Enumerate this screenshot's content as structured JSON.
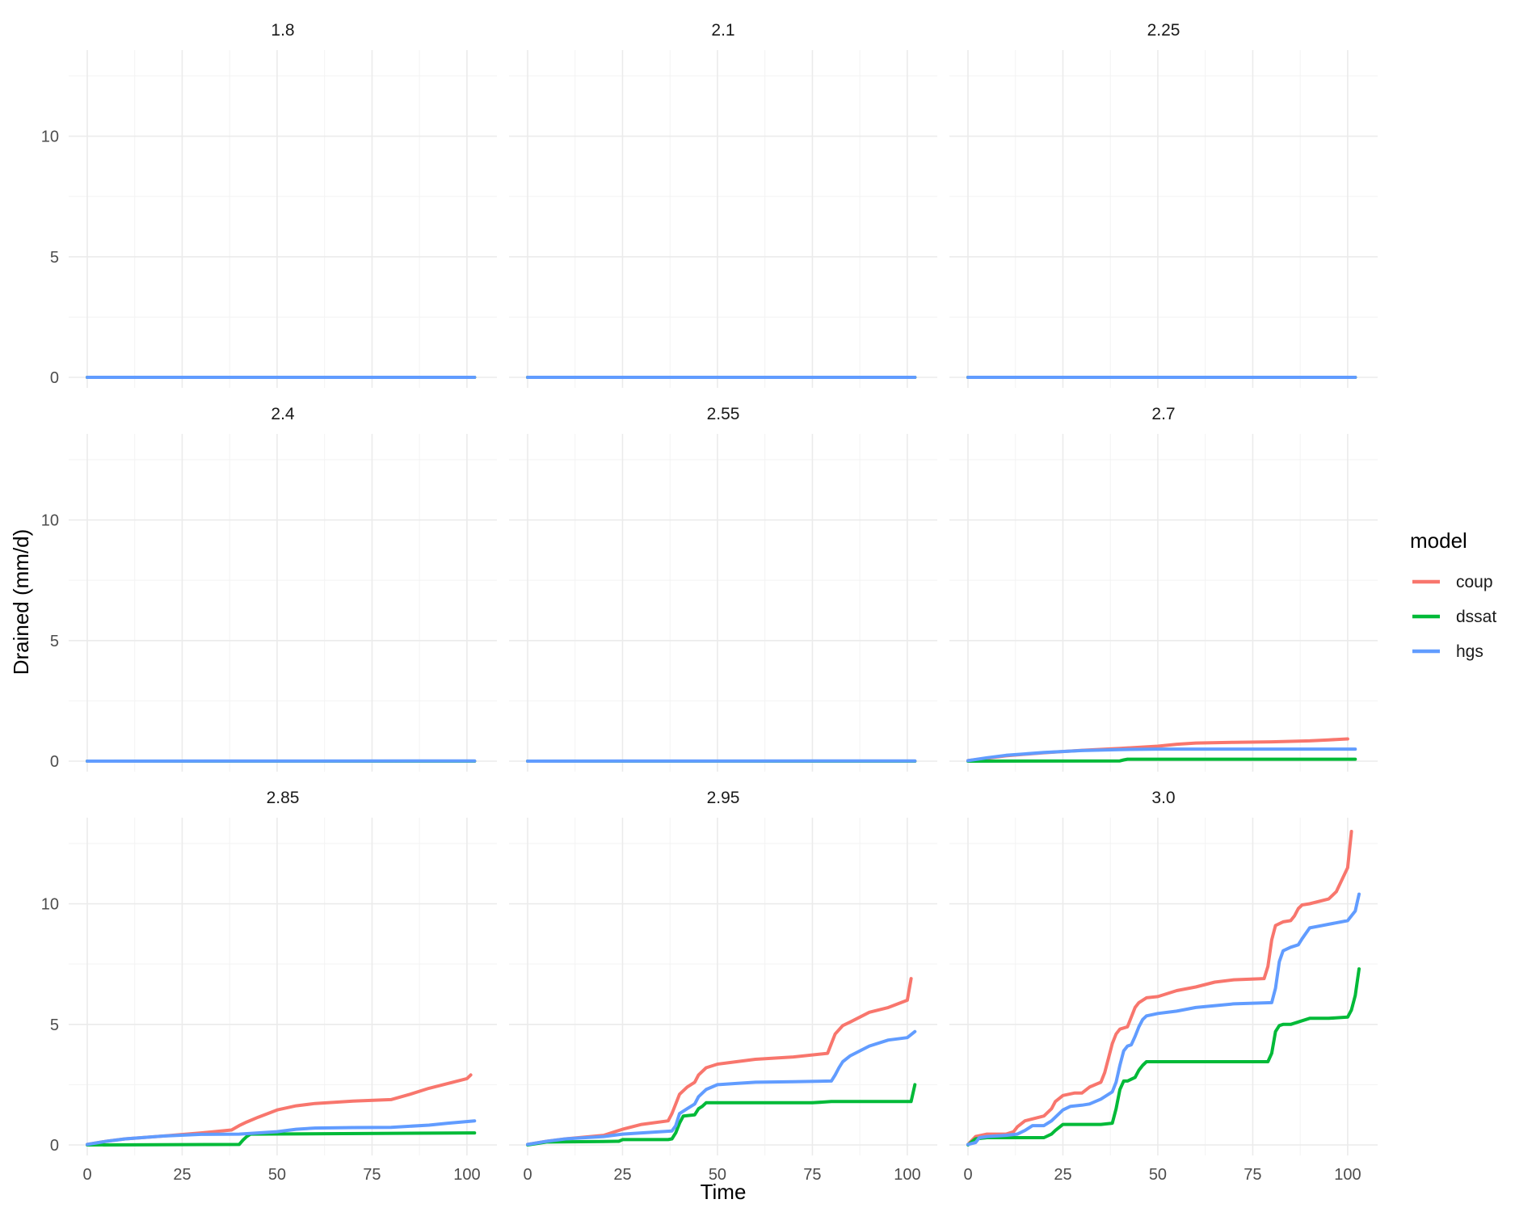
{
  "chart_data": {
    "type": "line",
    "facet_layout": "3x3 grid",
    "xlabel": "Time",
    "ylabel": "Drained (mm/d)",
    "xlim": [
      0,
      103
    ],
    "ylim": [
      0,
      13
    ],
    "x_ticks": [
      0,
      25,
      50,
      75,
      100
    ],
    "y_ticks": [
      0,
      5,
      10
    ],
    "grid": true,
    "legend": {
      "title": "model",
      "position": "right",
      "entries": [
        {
          "name": "coup",
          "color": "#F8766D"
        },
        {
          "name": "dssat",
          "color": "#00BA38"
        },
        {
          "name": "hgs",
          "color": "#619CFF"
        }
      ]
    },
    "panels": [
      {
        "title": "1.8",
        "series": [
          {
            "name": "coup",
            "x": [
              0,
              102
            ],
            "y": [
              0,
              0
            ]
          },
          {
            "name": "dssat",
            "x": [
              0,
              102
            ],
            "y": [
              0,
              0
            ]
          },
          {
            "name": "hgs",
            "x": [
              0,
              102
            ],
            "y": [
              0,
              0
            ]
          }
        ]
      },
      {
        "title": "2.1",
        "series": [
          {
            "name": "coup",
            "x": [
              0,
              102
            ],
            "y": [
              0,
              0
            ]
          },
          {
            "name": "dssat",
            "x": [
              0,
              102
            ],
            "y": [
              0,
              0
            ]
          },
          {
            "name": "hgs",
            "x": [
              0,
              102
            ],
            "y": [
              0,
              0
            ]
          }
        ]
      },
      {
        "title": "2.25",
        "series": [
          {
            "name": "coup",
            "x": [
              0,
              102
            ],
            "y": [
              0,
              0
            ]
          },
          {
            "name": "dssat",
            "x": [
              0,
              102
            ],
            "y": [
              0,
              0
            ]
          },
          {
            "name": "hgs",
            "x": [
              0,
              102
            ],
            "y": [
              0,
              0
            ]
          }
        ]
      },
      {
        "title": "2.4",
        "series": [
          {
            "name": "coup",
            "x": [
              0,
              102
            ],
            "y": [
              0,
              0
            ]
          },
          {
            "name": "dssat",
            "x": [
              0,
              102
            ],
            "y": [
              0,
              0
            ]
          },
          {
            "name": "hgs",
            "x": [
              0,
              102
            ],
            "y": [
              0,
              0.01
            ]
          }
        ]
      },
      {
        "title": "2.55",
        "series": [
          {
            "name": "coup",
            "x": [
              0,
              102
            ],
            "y": [
              0,
              0
            ]
          },
          {
            "name": "dssat",
            "x": [
              0,
              102
            ],
            "y": [
              0,
              0
            ]
          },
          {
            "name": "hgs",
            "x": [
              0,
              102
            ],
            "y": [
              0,
              0.01
            ]
          }
        ]
      },
      {
        "title": "2.7",
        "series": [
          {
            "name": "coup",
            "x": [
              0,
              5,
              10,
              20,
              30,
              40,
              50,
              55,
              60,
              70,
              80,
              90,
              95,
              100
            ],
            "y": [
              0.02,
              0.12,
              0.22,
              0.35,
              0.45,
              0.53,
              0.62,
              0.7,
              0.75,
              0.78,
              0.8,
              0.84,
              0.88,
              0.92
            ]
          },
          {
            "name": "dssat",
            "x": [
              0,
              40,
              41,
              42,
              102
            ],
            "y": [
              0,
              0.01,
              0.05,
              0.08,
              0.08
            ]
          },
          {
            "name": "hgs",
            "x": [
              0,
              5,
              10,
              20,
              30,
              40,
              50,
              60,
              102
            ],
            "y": [
              0.02,
              0.14,
              0.24,
              0.36,
              0.44,
              0.48,
              0.5,
              0.5,
              0.5
            ]
          }
        ]
      },
      {
        "title": "2.85",
        "series": [
          {
            "name": "coup",
            "x": [
              0,
              5,
              10,
              20,
              30,
              38,
              40,
              42,
              45,
              50,
              55,
              60,
              70,
              80,
              85,
              90,
              95,
              100,
              101
            ],
            "y": [
              0.02,
              0.15,
              0.25,
              0.37,
              0.5,
              0.62,
              0.8,
              0.95,
              1.15,
              1.45,
              1.62,
              1.72,
              1.82,
              1.88,
              2.1,
              2.35,
              2.55,
              2.75,
              2.9
            ]
          },
          {
            "name": "dssat",
            "x": [
              0,
              40,
              41,
              42,
              43,
              102
            ],
            "y": [
              0,
              0.02,
              0.2,
              0.35,
              0.45,
              0.5
            ]
          },
          {
            "name": "hgs",
            "x": [
              0,
              5,
              10,
              20,
              30,
              40,
              50,
              55,
              60,
              70,
              80,
              90,
              95,
              102
            ],
            "y": [
              0.02,
              0.15,
              0.25,
              0.37,
              0.44,
              0.45,
              0.55,
              0.65,
              0.7,
              0.72,
              0.73,
              0.82,
              0.9,
              1.0
            ]
          }
        ]
      },
      {
        "title": "2.95",
        "series": [
          {
            "name": "coup",
            "x": [
              0,
              5,
              10,
              20,
              25,
              30,
              37,
              38,
              39,
              40,
              42,
              44,
              45,
              47,
              50,
              55,
              60,
              70,
              79,
              80,
              81,
              83,
              85,
              90,
              95,
              100,
              101
            ],
            "y": [
              0.02,
              0.15,
              0.25,
              0.4,
              0.65,
              0.85,
              1.0,
              1.3,
              1.7,
              2.1,
              2.4,
              2.6,
              2.9,
              3.2,
              3.35,
              3.45,
              3.55,
              3.65,
              3.8,
              4.2,
              4.6,
              4.95,
              5.1,
              5.5,
              5.7,
              6.0,
              6.9
            ]
          },
          {
            "name": "dssat",
            "x": [
              0,
              5,
              20,
              24,
              25,
              37,
              38,
              39,
              40,
              41,
              44,
              45,
              46,
              47,
              60,
              75,
              80,
              90,
              101,
              102
            ],
            "y": [
              0,
              0.12,
              0.14,
              0.15,
              0.22,
              0.22,
              0.25,
              0.5,
              0.9,
              1.2,
              1.25,
              1.5,
              1.6,
              1.75,
              1.75,
              1.75,
              1.8,
              1.8,
              1.8,
              2.5
            ]
          },
          {
            "name": "hgs",
            "x": [
              0,
              5,
              10,
              20,
              25,
              30,
              38,
              39,
              40,
              42,
              44,
              45,
              47,
              50,
              55,
              60,
              70,
              80,
              81,
              82,
              83,
              85,
              90,
              95,
              100,
              102
            ],
            "y": [
              0.02,
              0.15,
              0.25,
              0.35,
              0.45,
              0.5,
              0.58,
              0.8,
              1.3,
              1.5,
              1.7,
              2.0,
              2.3,
              2.5,
              2.55,
              2.6,
              2.62,
              2.65,
              2.9,
              3.2,
              3.45,
              3.7,
              4.1,
              4.35,
              4.45,
              4.7
            ]
          }
        ]
      },
      {
        "title": "3.0",
        "series": [
          {
            "name": "coup",
            "x": [
              0,
              2,
              5,
              10,
              12,
              13,
              15,
              20,
              21,
              22,
              23,
              25,
              28,
              30,
              32,
              35,
              36,
              37,
              38,
              39,
              40,
              42,
              43,
              44,
              45,
              46,
              47,
              50,
              55,
              60,
              65,
              70,
              78,
              79,
              80,
              81,
              83,
              85,
              86,
              87,
              88,
              90,
              95,
              97,
              100,
              101
            ],
            "y": [
              0.02,
              0.35,
              0.45,
              0.45,
              0.55,
              0.75,
              1.0,
              1.2,
              1.35,
              1.5,
              1.8,
              2.05,
              2.15,
              2.15,
              2.4,
              2.6,
              3.0,
              3.6,
              4.2,
              4.6,
              4.8,
              4.9,
              5.3,
              5.7,
              5.9,
              6.0,
              6.1,
              6.15,
              6.4,
              6.55,
              6.75,
              6.85,
              6.9,
              7.4,
              8.5,
              9.1,
              9.25,
              9.3,
              9.5,
              9.8,
              9.95,
              10.0,
              10.2,
              10.5,
              11.5,
              13.0
            ]
          },
          {
            "name": "dssat",
            "x": [
              0,
              2,
              5,
              20,
              22,
              23,
              25,
              35,
              38,
              39,
              40,
              41,
              42,
              44,
              45,
              46,
              47,
              50,
              60,
              70,
              79,
              80,
              81,
              82,
              83,
              85,
              87,
              90,
              95,
              100,
              101,
              102,
              103
            ],
            "y": [
              0,
              0.25,
              0.3,
              0.3,
              0.45,
              0.6,
              0.85,
              0.85,
              0.9,
              1.5,
              2.3,
              2.65,
              2.65,
              2.8,
              3.1,
              3.3,
              3.45,
              3.45,
              3.45,
              3.45,
              3.45,
              3.8,
              4.7,
              4.95,
              5.0,
              5.0,
              5.1,
              5.25,
              5.25,
              5.3,
              5.6,
              6.2,
              7.3
            ]
          },
          {
            "name": "hgs",
            "x": [
              0,
              2,
              3,
              5,
              10,
              13,
              15,
              17,
              20,
              22,
              24,
              25,
              27,
              30,
              32,
              35,
              38,
              39,
              40,
              41,
              42,
              43,
              44,
              45,
              46,
              47,
              50,
              55,
              60,
              70,
              80,
              81,
              82,
              83,
              85,
              87,
              88,
              90,
              95,
              100,
              102,
              103
            ],
            "y": [
              0.02,
              0.1,
              0.3,
              0.35,
              0.4,
              0.45,
              0.6,
              0.8,
              0.8,
              1.0,
              1.3,
              1.45,
              1.6,
              1.65,
              1.7,
              1.9,
              2.2,
              2.6,
              3.3,
              3.9,
              4.1,
              4.15,
              4.5,
              4.9,
              5.2,
              5.35,
              5.45,
              5.55,
              5.7,
              5.85,
              5.9,
              6.5,
              7.6,
              8.05,
              8.2,
              8.3,
              8.55,
              9.0,
              9.15,
              9.3,
              9.7,
              10.4
            ]
          }
        ]
      }
    ]
  }
}
